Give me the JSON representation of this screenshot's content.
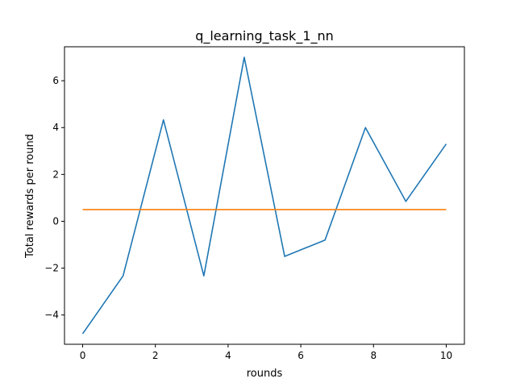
{
  "chart_data": {
    "type": "line",
    "title": "q_learning_task_1_nn",
    "xlabel": "rounds",
    "ylabel": "Total rewards per round",
    "xlim": [
      -0.5,
      10.5
    ],
    "ylim": [
      -5.25,
      7.45
    ],
    "xticks": [
      0,
      2,
      4,
      6,
      8,
      10
    ],
    "yticks": [
      -4,
      -2,
      0,
      2,
      4,
      6
    ],
    "xtick_labels": [
      "0",
      "2",
      "4",
      "6",
      "8",
      "10"
    ],
    "ytick_labels": [
      "−4",
      "−2",
      "0",
      "2",
      "4",
      "6"
    ],
    "grid": false,
    "series": [
      {
        "color": "#1f77b4",
        "x": [
          0,
          1.111,
          2.222,
          3.333,
          4.444,
          5.556,
          6.667,
          7.778,
          8.889,
          10
        ],
        "y": [
          -4.8,
          -2.33,
          4.33,
          -2.33,
          7.0,
          -1.5,
          -0.8,
          4.0,
          0.85,
          3.3
        ]
      },
      {
        "color": "#ff7f0e",
        "x": [
          0,
          10
        ],
        "y": [
          0.5,
          0.5
        ]
      }
    ]
  }
}
